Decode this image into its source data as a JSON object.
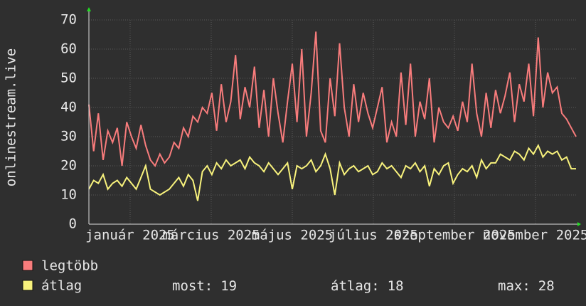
{
  "chart_data": {
    "type": "line",
    "y_label": "onlinestream.live",
    "x_labels": [
      "január 2025",
      "március 2025",
      "május 2025",
      "július 2025",
      "szeptember 2025",
      "november 2025"
    ],
    "ylim": [
      0,
      70
    ],
    "yticks": [
      0,
      10,
      20,
      30,
      40,
      50,
      60,
      70
    ],
    "grid": true,
    "series": [
      {
        "name": "legtöbb",
        "color": "#f87c7c",
        "values": [
          41,
          25,
          38,
          22,
          32,
          28,
          33,
          20,
          35,
          30,
          26,
          34,
          27,
          22,
          20,
          24,
          21,
          23,
          28,
          26,
          33,
          30,
          37,
          35,
          40,
          38,
          45,
          32,
          48,
          35,
          42,
          58,
          36,
          47,
          40,
          54,
          33,
          46,
          30,
          50,
          38,
          28,
          42,
          55,
          35,
          60,
          30,
          45,
          66,
          32,
          28,
          50,
          37,
          62,
          40,
          30,
          48,
          35,
          45,
          38,
          33,
          40,
          47,
          28,
          35,
          30,
          52,
          34,
          55,
          30,
          42,
          36,
          50,
          28,
          40,
          35,
          33,
          37,
          32,
          42,
          35,
          55,
          38,
          30,
          45,
          33,
          46,
          38,
          44,
          52,
          35,
          48,
          42,
          55,
          37,
          64,
          40,
          52,
          45,
          47,
          38,
          36,
          33,
          30
        ]
      },
      {
        "name": "átlag",
        "color": "#f8f27c",
        "values": [
          12,
          15,
          14,
          17,
          12,
          14,
          15,
          13,
          16,
          14,
          12,
          16,
          20,
          12,
          11,
          10,
          11,
          12,
          14,
          16,
          13,
          17,
          15,
          8,
          18,
          20,
          17,
          21,
          19,
          22,
          20,
          21,
          22,
          19,
          23,
          21,
          20,
          18,
          21,
          19,
          17,
          19,
          21,
          12,
          20,
          19,
          20,
          22,
          18,
          20,
          24,
          19,
          10,
          21,
          17,
          19,
          20,
          18,
          19,
          20,
          17,
          18,
          21,
          19,
          20,
          18,
          16,
          20,
          19,
          21,
          18,
          20,
          13,
          19,
          17,
          20,
          21,
          14,
          17,
          19,
          18,
          20,
          16,
          22,
          19,
          21,
          21,
          24,
          23,
          22,
          25,
          24,
          22,
          26,
          24,
          27,
          23,
          25,
          24,
          25,
          22,
          23,
          19,
          19
        ]
      }
    ],
    "stats": [
      {
        "label": "most:",
        "value": 19
      },
      {
        "label": "átlag:",
        "value": 18
      },
      {
        "label": "max:",
        "value": 28
      }
    ]
  }
}
